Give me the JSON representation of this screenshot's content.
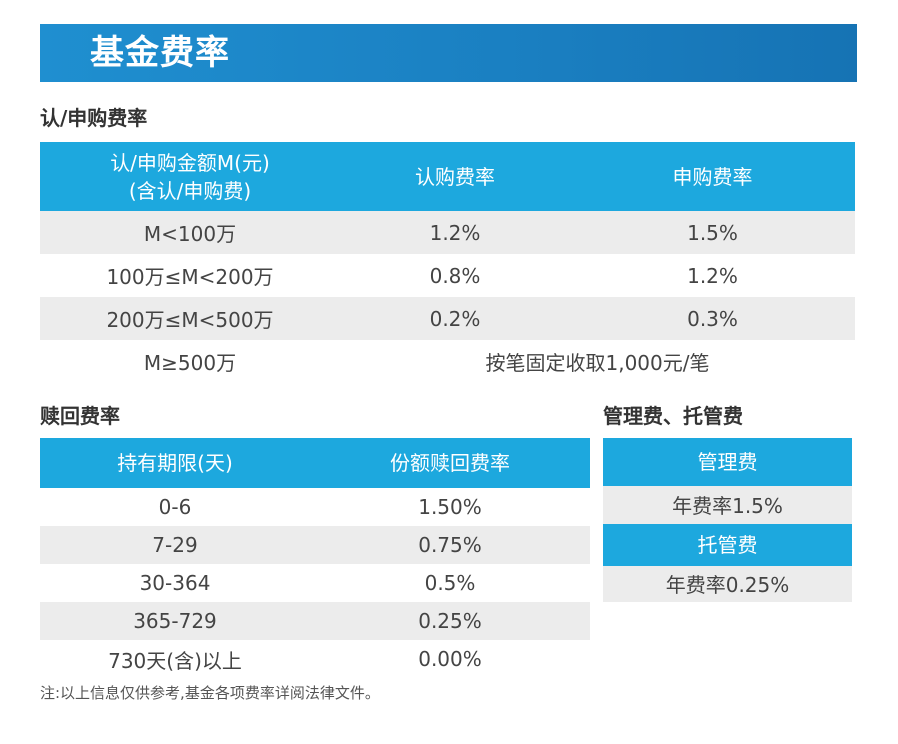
{
  "banner": {
    "title": "基金费率"
  },
  "subscription": {
    "section_title": "认/申购费率",
    "headers": [
      "认/申购金额M(元)",
      "(含认/申购费)",
      "认购费率",
      "申购费率"
    ],
    "rows": [
      {
        "amount": "M<100万",
        "subscribe": "1.2%",
        "purchase": "1.5%"
      },
      {
        "amount": "100万≤M<200万",
        "subscribe": "0.8%",
        "purchase": "1.2%"
      },
      {
        "amount": "200万≤M<500万",
        "subscribe": "0.2%",
        "purchase": "0.3%"
      }
    ],
    "last_row": {
      "amount": "M≥500万",
      "fee": "按笔固定收取1,000元/笔"
    }
  },
  "redemption": {
    "section_title": "赎回费率",
    "headers": [
      "持有期限(天)",
      "份额赎回费率"
    ],
    "rows": [
      {
        "period": "0-6",
        "rate": "1.50%"
      },
      {
        "period": "7-29",
        "rate": "0.75%"
      },
      {
        "period": "30-364",
        "rate": "0.5%"
      },
      {
        "period": "365-729",
        "rate": "0.25%"
      },
      {
        "period": "730天(含)以上",
        "rate": "0.00%"
      }
    ]
  },
  "management": {
    "section_title": "管理费、托管费",
    "mgmt_header": "管理费",
    "mgmt_value": "年费率1.5%",
    "custody_header": "托管费",
    "custody_value": "年费率0.25%"
  },
  "note": "注:以上信息仅供参考,基金各项费率详阅法律文件。",
  "colors": {
    "banner": "#1a7fc1",
    "table_header": "#1da8de",
    "row_stripe": "#ececec"
  }
}
